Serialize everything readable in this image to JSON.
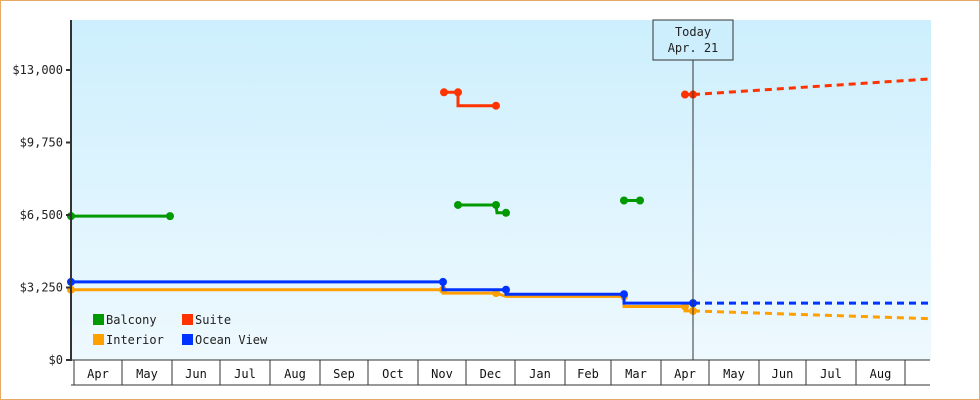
{
  "chart_data": {
    "type": "line",
    "title": "",
    "xlabel": "",
    "ylabel": "",
    "ylim": [
      0,
      15000
    ],
    "y_ticks": [
      {
        "value": 0,
        "label": "$0"
      },
      {
        "value": 3250,
        "label": "$3,250"
      },
      {
        "value": 6500,
        "label": "$6,500"
      },
      {
        "value": 9750,
        "label": "$9,750"
      },
      {
        "value": 13000,
        "label": "$13,000"
      }
    ],
    "x_months": [
      "Apr",
      "May",
      "Jun",
      "Jul",
      "Aug",
      "Sep",
      "Oct",
      "Nov",
      "Dec",
      "Jan",
      "Feb",
      "Mar",
      "Apr",
      "May",
      "Jun",
      "Jul",
      "Aug",
      ""
    ],
    "today_marker": {
      "line1": "Today",
      "line2": "Apr. 21"
    },
    "legend": [
      {
        "name": "Balcony",
        "color": "#009900"
      },
      {
        "name": "Suite",
        "color": "#ff3300"
      },
      {
        "name": "Interior",
        "color": "#ffa000"
      },
      {
        "name": "Ocean View",
        "color": "#0033ff"
      }
    ],
    "series": [
      {
        "name": "Balcony",
        "color": "#009900",
        "segments": [
          [
            [
              71,
              6450
            ],
            [
              170,
              6450
            ]
          ],
          [
            [
              458,
              6950
            ],
            [
              496,
              6950
            ],
            [
              497,
              6600
            ],
            [
              506,
              6600
            ]
          ],
          [
            [
              624,
              7150
            ],
            [
              640,
              7150
            ]
          ]
        ]
      },
      {
        "name": "Suite",
        "color": "#ff3300",
        "segments": [
          [
            [
              444,
              12000
            ],
            [
              458,
              12000
            ],
            [
              458,
              11400
            ],
            [
              496,
              11400
            ]
          ],
          [
            [
              685,
              11900
            ],
            [
              693,
              11900
            ]
          ]
        ],
        "forecast": [
          [
            693,
            11900
          ],
          [
            930,
            12600
          ]
        ]
      },
      {
        "name": "Interior",
        "color": "#ffa000",
        "segments": [
          [
            [
              71,
              3150
            ],
            [
              443,
              3150
            ],
            [
              443,
              3000
            ],
            [
              496,
              3000
            ],
            [
              506,
              2850
            ],
            [
              624,
              2850
            ],
            [
              624,
              2400
            ],
            [
              685,
              2400
            ],
            [
              685,
              2200
            ],
            [
              693,
              2200
            ]
          ]
        ],
        "forecast": [
          [
            693,
            2200
          ],
          [
            930,
            1850
          ]
        ]
      },
      {
        "name": "Ocean View",
        "color": "#0033ff",
        "segments": [
          [
            [
              71,
              3500
            ],
            [
              397,
              3500
            ],
            [
              443,
              3500
            ],
            [
              443,
              3150
            ],
            [
              496,
              3150
            ],
            [
              506,
              3150
            ],
            [
              506,
              2950
            ],
            [
              624,
              2950
            ],
            [
              624,
              2550
            ],
            [
              693,
              2550
            ]
          ]
        ],
        "forecast": [
          [
            693,
            2550
          ],
          [
            930,
            2550
          ]
        ]
      }
    ]
  }
}
